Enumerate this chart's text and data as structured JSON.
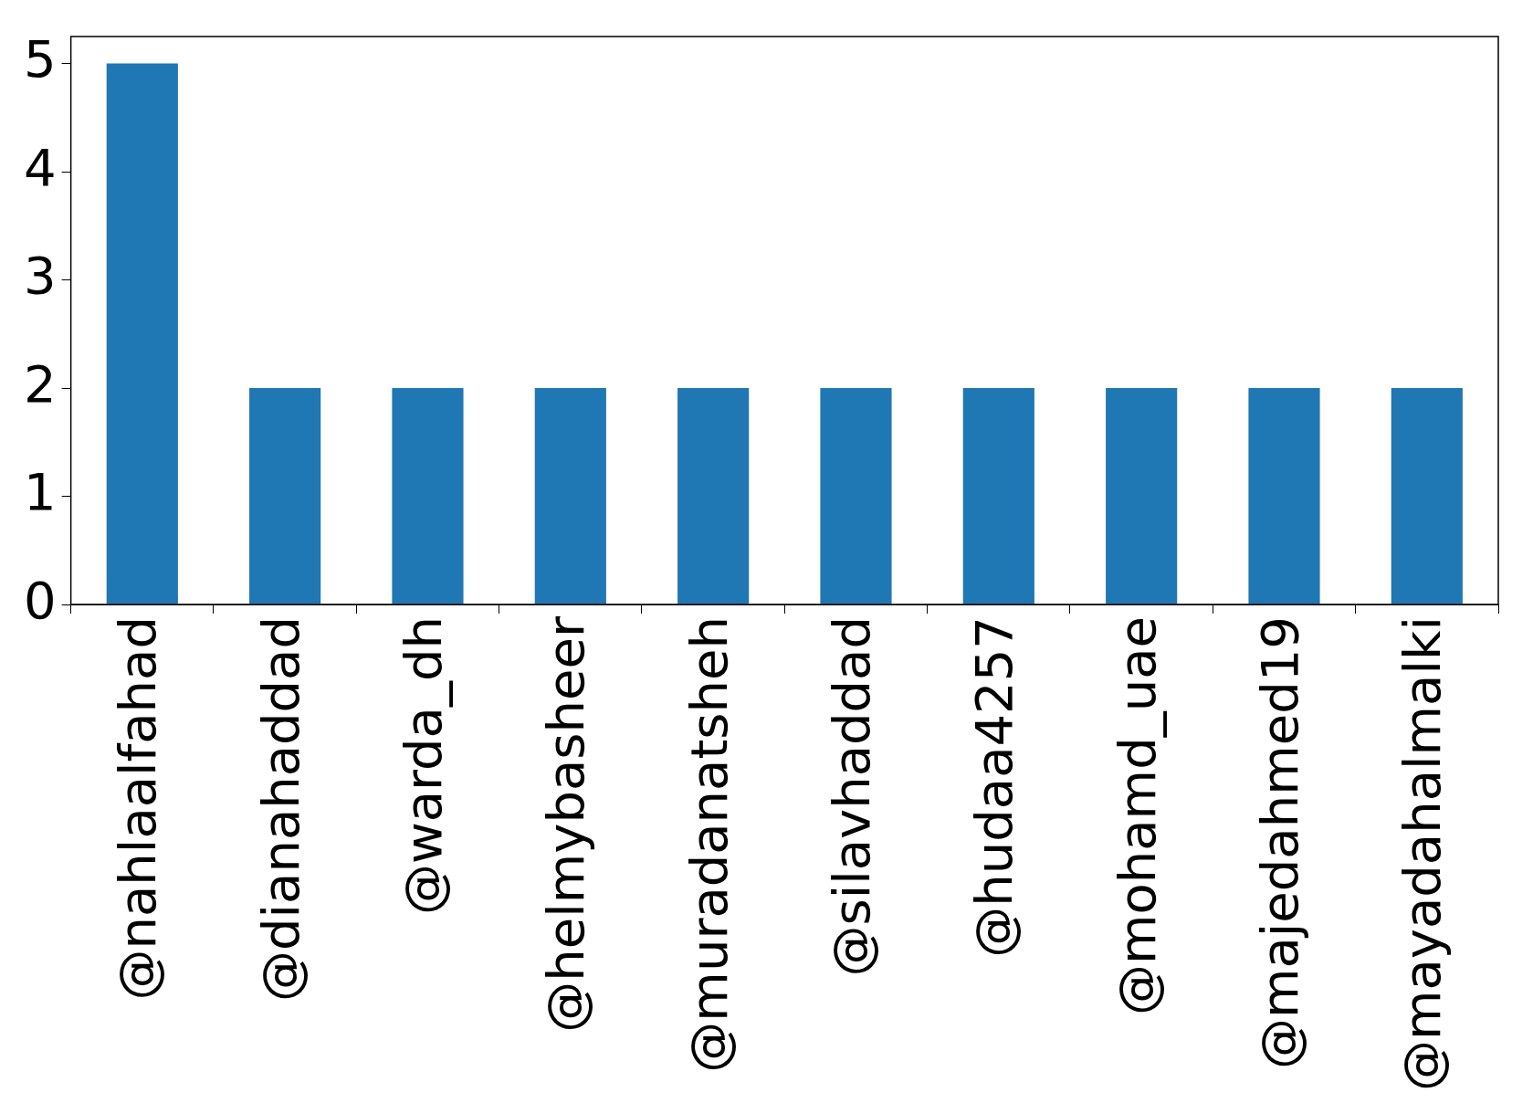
{
  "chart_data": {
    "type": "bar",
    "categories": [
      "@nahlaalfahad",
      "@dianahaddad",
      "@warda_dh",
      "@helmybasheer",
      "@muradanatsheh",
      "@silavhaddad",
      "@hudaa4257",
      "@mohamd_uae",
      "@majedahmed19",
      "@mayadahalmalki"
    ],
    "values": [
      5,
      2,
      2,
      2,
      2,
      2,
      2,
      2,
      2,
      2
    ],
    "color": "#1f77b4",
    "ylim": [
      0,
      5.25
    ],
    "yticks": [
      0,
      1,
      2,
      3,
      4,
      5
    ],
    "grid": false,
    "legend": false
  }
}
